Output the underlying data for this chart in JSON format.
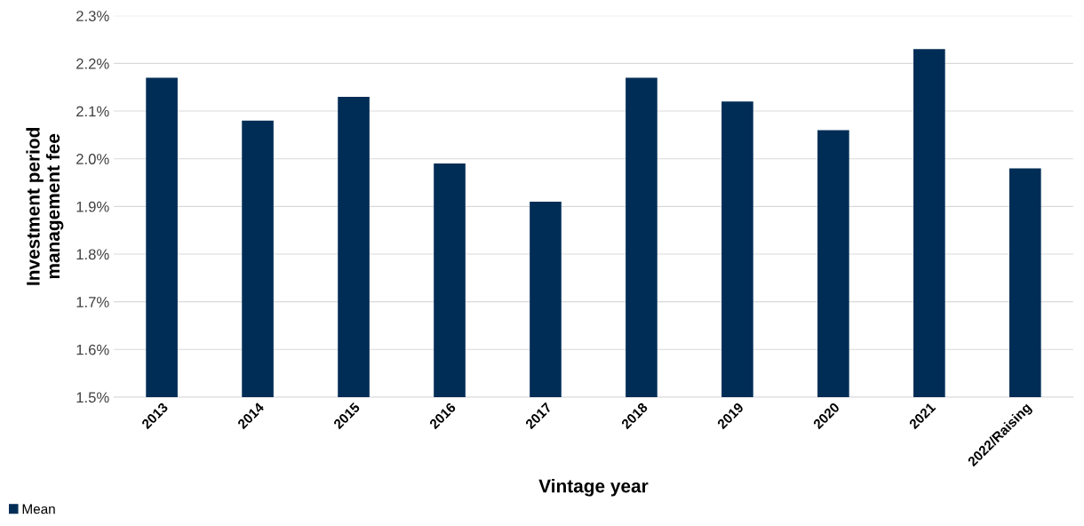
{
  "chart_data": {
    "type": "bar",
    "xlabel": "Vintage year",
    "ylabel": "Investment period\nmanagement fee",
    "categories": [
      "2013",
      "2014",
      "2015",
      "2016",
      "2017",
      "2018",
      "2019",
      "2020",
      "2021",
      "2022/Raising"
    ],
    "series": [
      {
        "name": "Mean",
        "color": "#002d56",
        "values": [
          2.17,
          2.08,
          2.13,
          1.99,
          1.91,
          2.17,
          2.12,
          2.06,
          2.23,
          1.98
        ]
      }
    ],
    "ylim": [
      1.5,
      2.3
    ],
    "yticks": [
      {
        "value": 1.5,
        "label": "1.5%"
      },
      {
        "value": 1.6,
        "label": "1.6%"
      },
      {
        "value": 1.7,
        "label": "1.7%"
      },
      {
        "value": 1.8,
        "label": "1.8%"
      },
      {
        "value": 1.9,
        "label": "1.9%"
      },
      {
        "value": 2.0,
        "label": "2.0%"
      },
      {
        "value": 2.1,
        "label": "2.1%"
      },
      {
        "value": 2.2,
        "label": "2.2%"
      },
      {
        "value": 2.3,
        "label": "2.3%"
      }
    ],
    "grid": "y",
    "legend": "bottom left"
  }
}
